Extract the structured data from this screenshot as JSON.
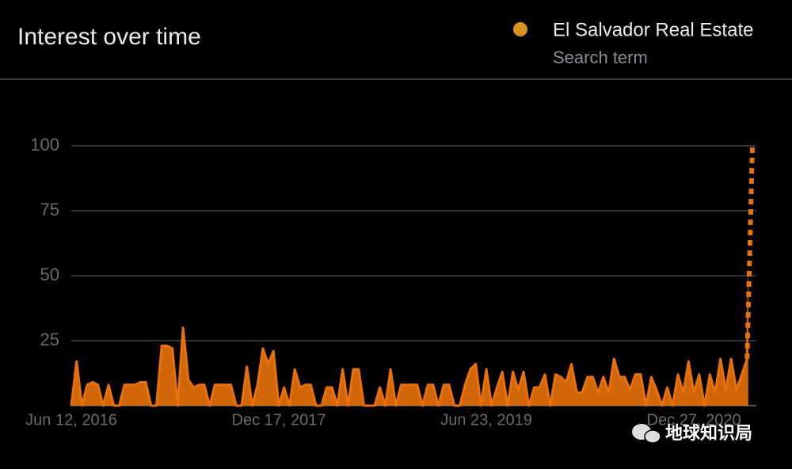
{
  "header": {
    "title": "Interest over time",
    "legend_subtitle": "Search term"
  },
  "watermark": "地球知识局",
  "chart_data": {
    "type": "line",
    "categories": [
      "Jun 12, 2016",
      null,
      null,
      null,
      null,
      null,
      null,
      null,
      null,
      null,
      null,
      null,
      null,
      null,
      null,
      null,
      null,
      null,
      null,
      null,
      null,
      null,
      null,
      null,
      null,
      null,
      null,
      null,
      null,
      null,
      null,
      null,
      null,
      null,
      null,
      null,
      null,
      null,
      null,
      "Dec 17, 2017",
      null,
      null,
      null,
      null,
      null,
      null,
      null,
      null,
      null,
      null,
      null,
      null,
      null,
      null,
      null,
      null,
      null,
      null,
      null,
      null,
      null,
      null,
      null,
      null,
      null,
      null,
      null,
      null,
      null,
      null,
      null,
      null,
      null,
      null,
      null,
      null,
      null,
      null,
      "Jun 23, 2019",
      null,
      null,
      null,
      null,
      null,
      null,
      null,
      null,
      null,
      null,
      null,
      null,
      null,
      null,
      null,
      null,
      null,
      null,
      null,
      null,
      null,
      null,
      null,
      null,
      null,
      null,
      null,
      null,
      null,
      null,
      null,
      null,
      null,
      null,
      null,
      null,
      null,
      null,
      "Dec 27, 2020",
      null,
      null,
      null,
      null,
      null,
      null,
      null,
      null,
      null,
      null,
      null
    ],
    "series": [
      {
        "name": "El Salvador Real Estate",
        "color": "#e8710a",
        "values": [
          0,
          17,
          0,
          8,
          9,
          8,
          0,
          8,
          0,
          0,
          8,
          8,
          8,
          9,
          9,
          0,
          0,
          23,
          23,
          22,
          0,
          30,
          10,
          7,
          8,
          8,
          0,
          8,
          8,
          8,
          8,
          0,
          0,
          15,
          0,
          8,
          22,
          16,
          21,
          0,
          7,
          0,
          14,
          7,
          8,
          8,
          0,
          0,
          7,
          7,
          0,
          14,
          0,
          14,
          14,
          0,
          0,
          0,
          7,
          0,
          14,
          0,
          8,
          8,
          8,
          8,
          0,
          8,
          8,
          0,
          8,
          8,
          0,
          0,
          8,
          14,
          16,
          0,
          14,
          0,
          7,
          13,
          0,
          13,
          6,
          13,
          0,
          7,
          7,
          12,
          0,
          12,
          11,
          9,
          16,
          5,
          5,
          11,
          11,
          5,
          11,
          5,
          18,
          11,
          11,
          6,
          12,
          12,
          0,
          11,
          6,
          0,
          7,
          0,
          12,
          5,
          17,
          5,
          12,
          0,
          12,
          5,
          18,
          6,
          18,
          6,
          12,
          18,
          100
        ]
      }
    ],
    "ylim": [
      0,
      100
    ],
    "yticks": [
      25,
      50,
      75,
      100
    ],
    "grid": true
  }
}
